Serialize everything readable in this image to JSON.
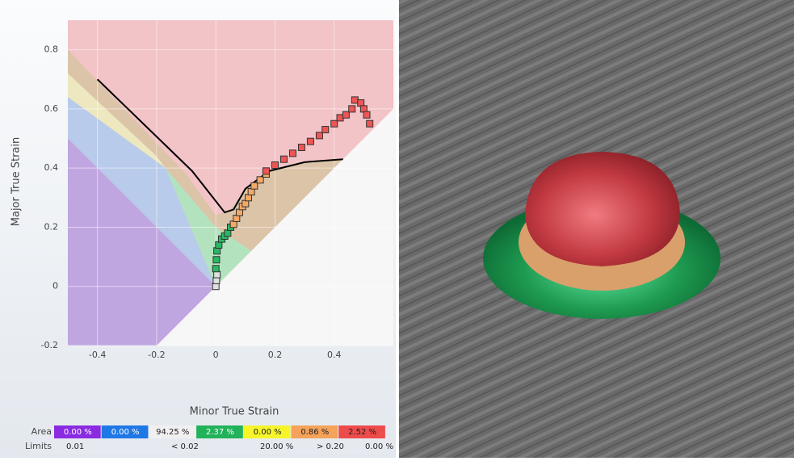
{
  "chart_data": {
    "type": "scatter",
    "xlabel": "Minor True Strain",
    "ylabel": "Major True Strain",
    "xlim": [
      -0.5,
      0.6
    ],
    "ylim": [
      -0.2,
      0.9
    ],
    "xticks": [
      -0.4,
      -0.2,
      0,
      0.2,
      0.4
    ],
    "yticks": [
      -0.2,
      0,
      0.2,
      0.4,
      0.6,
      0.8
    ],
    "grid": true,
    "background": "#f2c3c7",
    "regions": [
      {
        "color": "#dcc4a8",
        "points": [
          [
            -0.5,
            0.8
          ],
          [
            -0.1,
            0.38
          ],
          [
            0,
            0.24
          ],
          [
            0.05,
            0.26
          ],
          [
            0.1,
            0.33
          ],
          [
            0.2,
            0.4
          ],
          [
            0.3,
            0.42
          ],
          [
            0.43,
            0.43
          ],
          [
            0,
            0
          ],
          [
            -0.5,
            0.64
          ]
        ]
      },
      {
        "color": "#ede8bf",
        "points": [
          [
            -0.5,
            0.72
          ],
          [
            -0.2,
            0.44
          ],
          [
            -0.17,
            0.4
          ],
          [
            -0.5,
            0.64
          ]
        ]
      },
      {
        "color": "#b3e3be",
        "points": [
          [
            -0.17,
            0.4
          ],
          [
            0,
            0.2
          ],
          [
            0.12,
            0.12
          ],
          [
            0,
            0
          ]
        ]
      },
      {
        "color": "#b9cbeb",
        "points": [
          [
            -0.5,
            0.64
          ],
          [
            -0.17,
            0.4
          ],
          [
            0,
            0
          ],
          [
            -0.5,
            0.5
          ]
        ]
      },
      {
        "color": "#c0a6e0",
        "points": [
          [
            -0.5,
            0.5
          ],
          [
            0,
            0
          ],
          [
            -0.2,
            -0.2
          ],
          [
            -0.5,
            -0.2
          ]
        ]
      },
      {
        "color": "#f7f7f7",
        "points": [
          [
            -0.2,
            -0.2
          ],
          [
            0,
            0
          ],
          [
            0.6,
            0.6
          ],
          [
            0.6,
            -0.2
          ]
        ]
      }
    ],
    "curve": {
      "color": "#000000",
      "x": [
        -0.4,
        -0.08,
        0.03,
        0.06,
        0.1,
        0.18,
        0.3,
        0.43
      ],
      "y": [
        0.7,
        0.39,
        0.25,
        0.26,
        0.33,
        0.39,
        0.42,
        0.43
      ]
    },
    "series": [
      {
        "color": "#e0e0e0",
        "x": [
          0,
          0.002,
          0.004
        ],
        "y": [
          0,
          0.02,
          0.04
        ]
      },
      {
        "color": "#2bb865",
        "x": [
          0,
          0.002,
          0.004,
          0.01,
          0.02,
          0.03,
          0.04,
          0.05
        ],
        "y": [
          0.06,
          0.09,
          0.12,
          0.14,
          0.16,
          0.17,
          0.18,
          0.2
        ]
      },
      {
        "color": "#f6a865",
        "x": [
          0.06,
          0.07,
          0.08,
          0.09,
          0.1,
          0.11,
          0.12,
          0.13,
          0.15,
          0.17
        ],
        "y": [
          0.21,
          0.23,
          0.25,
          0.27,
          0.28,
          0.3,
          0.32,
          0.34,
          0.36,
          0.38
        ]
      },
      {
        "color": "#ee5555",
        "x": [
          0.17,
          0.2,
          0.23,
          0.26,
          0.29,
          0.32,
          0.35,
          0.37,
          0.4,
          0.42,
          0.44,
          0.46,
          0.47,
          0.49,
          0.5,
          0.51,
          0.52
        ],
        "y": [
          0.39,
          0.41,
          0.43,
          0.45,
          0.47,
          0.49,
          0.51,
          0.53,
          0.55,
          0.57,
          0.58,
          0.6,
          0.63,
          0.62,
          0.6,
          0.58,
          0.55
        ]
      }
    ]
  },
  "legend_table": {
    "area_label": "Area",
    "limits_label": "Limits",
    "areas": [
      {
        "text": "0.00 %",
        "color": "#8a2be2"
      },
      {
        "text": "0.00 %",
        "color": "#1e78e6"
      },
      {
        "text": "94.25 %",
        "color": "#f0f0f0"
      },
      {
        "text": "2.37 %",
        "color": "#22b35a"
      },
      {
        "text": "0.00 %",
        "color": "#f5f52a"
      },
      {
        "text": "0.86 %",
        "color": "#f5a25a"
      },
      {
        "text": "2.52 %",
        "color": "#ee4b4b"
      }
    ],
    "limits": [
      "0.01",
      "< 0.02",
      "20.00 %",
      "> 0.20",
      "0.00 %"
    ]
  }
}
